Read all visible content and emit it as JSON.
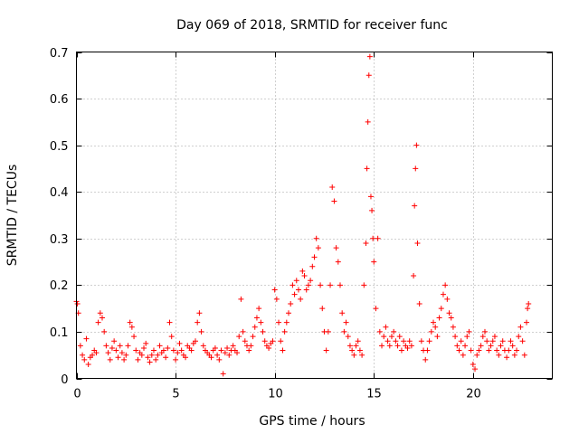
{
  "chart_data": {
    "type": "scatter",
    "title": "Day 069 of 2018, SRMTID for receiver func",
    "xlabel": "GPS time / hours",
    "ylabel": "SRMTID / TECUs",
    "xlim": [
      0,
      24
    ],
    "ylim": [
      0,
      0.7
    ],
    "x_ticks": [
      0,
      5,
      10,
      15,
      20
    ],
    "y_ticks": [
      0,
      0.1,
      0.2,
      0.3,
      0.4,
      0.5,
      0.6,
      0.7
    ],
    "x_tick_labels": [
      "0",
      "5",
      "10",
      "15",
      "20"
    ],
    "y_tick_labels": [
      "0",
      "0.1",
      "0.2",
      "0.3",
      "0.4",
      "0.5",
      "0.6",
      "0.7"
    ],
    "grid": true,
    "marker": "plus",
    "color": "#ff0000",
    "series": [
      {
        "name": "SRMTID",
        "points": [
          [
            0.0,
            0.165
          ],
          [
            0.05,
            0.16
          ],
          [
            0.1,
            0.14
          ],
          [
            0.2,
            0.07
          ],
          [
            0.3,
            0.05
          ],
          [
            0.4,
            0.04
          ],
          [
            0.5,
            0.085
          ],
          [
            0.6,
            0.03
          ],
          [
            0.7,
            0.045
          ],
          [
            0.8,
            0.05
          ],
          [
            0.9,
            0.06
          ],
          [
            1.0,
            0.055
          ],
          [
            1.1,
            0.12
          ],
          [
            1.2,
            0.14
          ],
          [
            1.3,
            0.13
          ],
          [
            1.4,
            0.1
          ],
          [
            1.5,
            0.07
          ],
          [
            1.6,
            0.055
          ],
          [
            1.7,
            0.04
          ],
          [
            1.8,
            0.065
          ],
          [
            1.9,
            0.08
          ],
          [
            2.0,
            0.06
          ],
          [
            2.1,
            0.045
          ],
          [
            2.2,
            0.07
          ],
          [
            2.3,
            0.055
          ],
          [
            2.4,
            0.04
          ],
          [
            2.5,
            0.05
          ],
          [
            2.6,
            0.07
          ],
          [
            2.7,
            0.12
          ],
          [
            2.8,
            0.11
          ],
          [
            2.9,
            0.09
          ],
          [
            3.0,
            0.06
          ],
          [
            3.1,
            0.04
          ],
          [
            3.2,
            0.055
          ],
          [
            3.3,
            0.05
          ],
          [
            3.4,
            0.065
          ],
          [
            3.5,
            0.075
          ],
          [
            3.6,
            0.045
          ],
          [
            3.7,
            0.035
          ],
          [
            3.8,
            0.05
          ],
          [
            3.9,
            0.06
          ],
          [
            4.0,
            0.04
          ],
          [
            4.1,
            0.05
          ],
          [
            4.2,
            0.07
          ],
          [
            4.3,
            0.055
          ],
          [
            4.4,
            0.06
          ],
          [
            4.5,
            0.045
          ],
          [
            4.6,
            0.065
          ],
          [
            4.7,
            0.12
          ],
          [
            4.8,
            0.09
          ],
          [
            4.9,
            0.06
          ],
          [
            5.0,
            0.04
          ],
          [
            5.1,
            0.055
          ],
          [
            5.2,
            0.075
          ],
          [
            5.3,
            0.06
          ],
          [
            5.4,
            0.05
          ],
          [
            5.5,
            0.045
          ],
          [
            5.6,
            0.07
          ],
          [
            5.7,
            0.065
          ],
          [
            5.8,
            0.06
          ],
          [
            5.9,
            0.075
          ],
          [
            6.0,
            0.08
          ],
          [
            6.1,
            0.12
          ],
          [
            6.2,
            0.14
          ],
          [
            6.3,
            0.1
          ],
          [
            6.4,
            0.07
          ],
          [
            6.5,
            0.06
          ],
          [
            6.6,
            0.055
          ],
          [
            6.7,
            0.05
          ],
          [
            6.8,
            0.045
          ],
          [
            6.9,
            0.06
          ],
          [
            7.0,
            0.065
          ],
          [
            7.1,
            0.05
          ],
          [
            7.2,
            0.04
          ],
          [
            7.3,
            0.06
          ],
          [
            7.4,
            0.01
          ],
          [
            7.5,
            0.055
          ],
          [
            7.6,
            0.065
          ],
          [
            7.7,
            0.05
          ],
          [
            7.8,
            0.06
          ],
          [
            7.9,
            0.07
          ],
          [
            8.0,
            0.06
          ],
          [
            8.1,
            0.055
          ],
          [
            8.2,
            0.09
          ],
          [
            8.3,
            0.17
          ],
          [
            8.4,
            0.1
          ],
          [
            8.5,
            0.08
          ],
          [
            8.6,
            0.07
          ],
          [
            8.7,
            0.06
          ],
          [
            8.8,
            0.07
          ],
          [
            8.9,
            0.09
          ],
          [
            9.0,
            0.11
          ],
          [
            9.1,
            0.13
          ],
          [
            9.2,
            0.15
          ],
          [
            9.3,
            0.12
          ],
          [
            9.4,
            0.1
          ],
          [
            9.5,
            0.08
          ],
          [
            9.6,
            0.07
          ],
          [
            9.7,
            0.065
          ],
          [
            9.8,
            0.075
          ],
          [
            9.9,
            0.08
          ],
          [
            10.0,
            0.19
          ],
          [
            10.1,
            0.17
          ],
          [
            10.2,
            0.12
          ],
          [
            10.3,
            0.08
          ],
          [
            10.4,
            0.06
          ],
          [
            10.5,
            0.1
          ],
          [
            10.6,
            0.12
          ],
          [
            10.7,
            0.14
          ],
          [
            10.8,
            0.16
          ],
          [
            10.9,
            0.2
          ],
          [
            11.0,
            0.18
          ],
          [
            11.1,
            0.21
          ],
          [
            11.2,
            0.19
          ],
          [
            11.3,
            0.17
          ],
          [
            11.4,
            0.23
          ],
          [
            11.5,
            0.22
          ],
          [
            11.6,
            0.19
          ],
          [
            11.7,
            0.2
          ],
          [
            11.8,
            0.21
          ],
          [
            11.9,
            0.24
          ],
          [
            12.0,
            0.26
          ],
          [
            12.1,
            0.3
          ],
          [
            12.2,
            0.28
          ],
          [
            12.3,
            0.2
          ],
          [
            12.4,
            0.15
          ],
          [
            12.5,
            0.1
          ],
          [
            12.6,
            0.06
          ],
          [
            12.7,
            0.1
          ],
          [
            12.8,
            0.2
          ],
          [
            12.9,
            0.41
          ],
          [
            13.0,
            0.38
          ],
          [
            13.1,
            0.28
          ],
          [
            13.2,
            0.25
          ],
          [
            13.3,
            0.2
          ],
          [
            13.4,
            0.14
          ],
          [
            13.5,
            0.1
          ],
          [
            13.6,
            0.12
          ],
          [
            13.7,
            0.09
          ],
          [
            13.8,
            0.07
          ],
          [
            13.9,
            0.06
          ],
          [
            14.0,
            0.05
          ],
          [
            14.1,
            0.07
          ],
          [
            14.2,
            0.08
          ],
          [
            14.3,
            0.06
          ],
          [
            14.4,
            0.05
          ],
          [
            14.5,
            0.2
          ],
          [
            14.6,
            0.29
          ],
          [
            14.65,
            0.45
          ],
          [
            14.7,
            0.55
          ],
          [
            14.75,
            0.65
          ],
          [
            14.8,
            0.69
          ],
          [
            14.85,
            0.39
          ],
          [
            14.9,
            0.36
          ],
          [
            14.95,
            0.3
          ],
          [
            15.0,
            0.25
          ],
          [
            15.1,
            0.15
          ],
          [
            15.2,
            0.3
          ],
          [
            15.3,
            0.1
          ],
          [
            15.4,
            0.07
          ],
          [
            15.5,
            0.09
          ],
          [
            15.6,
            0.11
          ],
          [
            15.7,
            0.08
          ],
          [
            15.8,
            0.07
          ],
          [
            15.9,
            0.09
          ],
          [
            16.0,
            0.1
          ],
          [
            16.1,
            0.08
          ],
          [
            16.2,
            0.07
          ],
          [
            16.3,
            0.09
          ],
          [
            16.4,
            0.06
          ],
          [
            16.5,
            0.08
          ],
          [
            16.6,
            0.07
          ],
          [
            16.7,
            0.065
          ],
          [
            16.8,
            0.08
          ],
          [
            16.9,
            0.07
          ],
          [
            17.0,
            0.22
          ],
          [
            17.05,
            0.37
          ],
          [
            17.1,
            0.45
          ],
          [
            17.15,
            0.5
          ],
          [
            17.2,
            0.29
          ],
          [
            17.3,
            0.16
          ],
          [
            17.4,
            0.08
          ],
          [
            17.5,
            0.06
          ],
          [
            17.6,
            0.04
          ],
          [
            17.7,
            0.06
          ],
          [
            17.8,
            0.08
          ],
          [
            17.9,
            0.1
          ],
          [
            18.0,
            0.12
          ],
          [
            18.1,
            0.11
          ],
          [
            18.2,
            0.09
          ],
          [
            18.3,
            0.13
          ],
          [
            18.4,
            0.15
          ],
          [
            18.5,
            0.18
          ],
          [
            18.6,
            0.2
          ],
          [
            18.7,
            0.17
          ],
          [
            18.8,
            0.14
          ],
          [
            18.9,
            0.13
          ],
          [
            19.0,
            0.11
          ],
          [
            19.1,
            0.09
          ],
          [
            19.2,
            0.07
          ],
          [
            19.3,
            0.06
          ],
          [
            19.4,
            0.08
          ],
          [
            19.5,
            0.05
          ],
          [
            19.6,
            0.07
          ],
          [
            19.7,
            0.09
          ],
          [
            19.8,
            0.1
          ],
          [
            19.9,
            0.06
          ],
          [
            20.0,
            0.03
          ],
          [
            20.1,
            0.02
          ],
          [
            20.2,
            0.05
          ],
          [
            20.3,
            0.06
          ],
          [
            20.4,
            0.07
          ],
          [
            20.5,
            0.09
          ],
          [
            20.6,
            0.1
          ],
          [
            20.7,
            0.08
          ],
          [
            20.8,
            0.06
          ],
          [
            20.9,
            0.07
          ],
          [
            21.0,
            0.08
          ],
          [
            21.1,
            0.09
          ],
          [
            21.2,
            0.06
          ],
          [
            21.3,
            0.05
          ],
          [
            21.4,
            0.07
          ],
          [
            21.5,
            0.08
          ],
          [
            21.6,
            0.06
          ],
          [
            21.7,
            0.045
          ],
          [
            21.8,
            0.06
          ],
          [
            21.9,
            0.08
          ],
          [
            22.0,
            0.07
          ],
          [
            22.1,
            0.05
          ],
          [
            22.2,
            0.06
          ],
          [
            22.3,
            0.09
          ],
          [
            22.4,
            0.11
          ],
          [
            22.5,
            0.08
          ],
          [
            22.6,
            0.05
          ],
          [
            22.7,
            0.12
          ],
          [
            22.75,
            0.15
          ],
          [
            22.8,
            0.16
          ]
        ]
      }
    ]
  }
}
